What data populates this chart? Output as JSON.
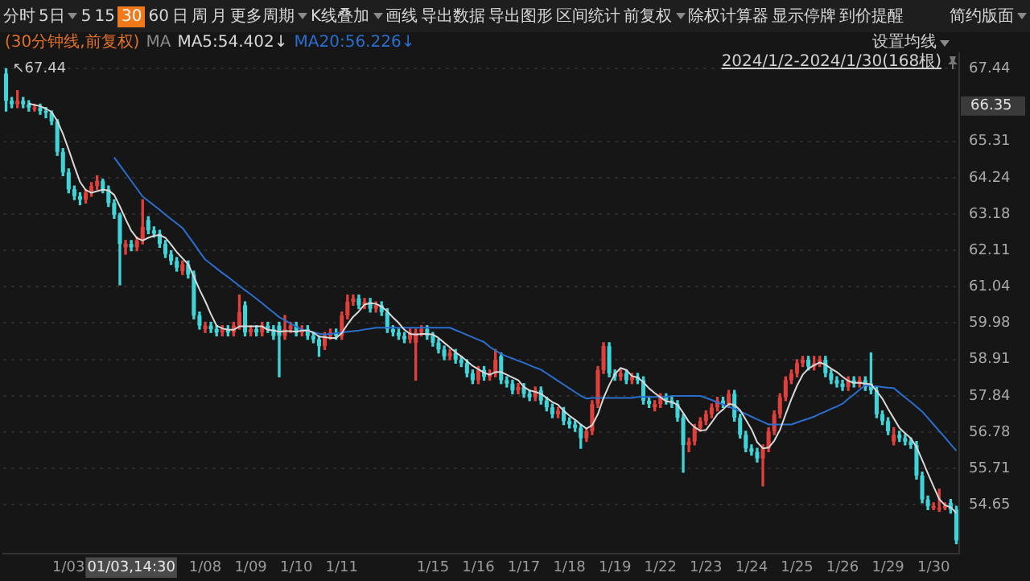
{
  "chart_data": {
    "type": "candlestick",
    "subtitle": "(30分钟线,前复权)",
    "legend_title": "MA",
    "legend": "top left",
    "grid": "y",
    "categories": [
      null,
      null,
      null,
      null,
      null,
      null,
      null,
      null,
      null,
      null,
      null,
      "1/03",
      null,
      null,
      null,
      null,
      null,
      null,
      null,
      null,
      null,
      null,
      "01/03,14:30",
      null,
      null,
      null,
      null,
      null,
      null,
      null,
      null,
      null,
      null,
      null,
      null,
      "1/08",
      null,
      null,
      null,
      null,
      null,
      null,
      null,
      "1/09",
      null,
      null,
      null,
      null,
      null,
      null,
      null,
      "1/10",
      null,
      null,
      null,
      null,
      null,
      null,
      null,
      "1/11",
      null,
      null,
      null,
      null,
      null,
      null,
      null,
      null,
      null,
      null,
      null,
      null,
      null,
      null,
      null,
      "1/15",
      null,
      null,
      null,
      null,
      null,
      null,
      null,
      "1/16",
      null,
      null,
      null,
      null,
      null,
      null,
      null,
      "1/17",
      null,
      null,
      null,
      null,
      null,
      null,
      null,
      "1/18",
      null,
      null,
      null,
      null,
      null,
      null,
      null,
      "1/19",
      null,
      null,
      null,
      null,
      null,
      null,
      null,
      "1/22",
      null,
      null,
      null,
      null,
      null,
      null,
      null,
      "1/23",
      null,
      null,
      null,
      null,
      null,
      null,
      null,
      "1/24",
      null,
      null,
      null,
      null,
      null,
      null,
      null,
      "1/25",
      null,
      null,
      null,
      null,
      null,
      null,
      null,
      "1/26",
      null,
      null,
      null,
      null,
      null,
      null,
      null,
      "1/29",
      null,
      null,
      null,
      null,
      null,
      null,
      null,
      "1/30",
      null,
      null,
      null,
      null
    ],
    "ohlc": [
      [
        67.3,
        67.44,
        66.2,
        66.5
      ],
      [
        66.5,
        66.6,
        66.3,
        66.4
      ],
      [
        66.4,
        66.8,
        66.3,
        66.5
      ],
      [
        66.5,
        66.6,
        66.3,
        66.4
      ],
      [
        66.4,
        66.5,
        66.2,
        66.3
      ],
      [
        66.25,
        66.4,
        66.2,
        66.3
      ],
      [
        66.3,
        66.4,
        66.1,
        66.2
      ],
      [
        66.2,
        66.3,
        66.0,
        66.15
      ],
      [
        66.15,
        66.2,
        65.8,
        65.9
      ],
      [
        65.9,
        65.95,
        64.9,
        65.0
      ],
      [
        65.0,
        65.1,
        64.3,
        64.4
      ],
      [
        64.4,
        64.5,
        63.8,
        63.9
      ],
      [
        63.9,
        64.0,
        63.6,
        63.7
      ],
      [
        63.7,
        63.8,
        63.45,
        63.6
      ],
      [
        63.6,
        63.9,
        63.5,
        63.8
      ],
      [
        63.8,
        64.1,
        63.7,
        64.0
      ],
      [
        64.0,
        64.3,
        63.9,
        64.15
      ],
      [
        64.15,
        64.2,
        63.8,
        63.9
      ],
      [
        63.9,
        64.0,
        63.4,
        63.5
      ],
      [
        63.5,
        63.6,
        63.05,
        63.15
      ],
      [
        63.15,
        63.2,
        61.1,
        62.3
      ],
      [
        62.2,
        62.4,
        62.0,
        62.3
      ],
      [
        62.3,
        62.4,
        62.1,
        62.2
      ],
      [
        62.2,
        62.5,
        62.1,
        62.4
      ],
      [
        62.4,
        63.6,
        62.3,
        62.8
      ],
      [
        63.0,
        63.1,
        62.6,
        62.7
      ],
      [
        62.7,
        62.8,
        62.5,
        62.6
      ],
      [
        62.6,
        62.7,
        62.2,
        62.3
      ],
      [
        62.3,
        62.4,
        61.9,
        62.0
      ],
      [
        62.0,
        62.1,
        61.7,
        61.8
      ],
      [
        61.8,
        61.9,
        61.5,
        61.6
      ],
      [
        61.5,
        61.8,
        61.4,
        61.7
      ],
      [
        61.7,
        61.8,
        61.3,
        61.4
      ],
      [
        61.4,
        61.5,
        60.1,
        60.2
      ],
      [
        60.2,
        60.3,
        59.8,
        59.9
      ],
      [
        59.8,
        60.0,
        59.7,
        59.9
      ],
      [
        59.9,
        60.0,
        59.7,
        59.8
      ],
      [
        59.8,
        59.9,
        59.6,
        59.7
      ],
      [
        59.7,
        59.9,
        59.6,
        59.8
      ],
      [
        59.8,
        59.9,
        59.6,
        59.7
      ],
      [
        59.7,
        60.0,
        59.6,
        59.9
      ],
      [
        59.9,
        60.8,
        59.8,
        60.3
      ],
      [
        60.5,
        60.6,
        59.6,
        59.7
      ],
      [
        59.7,
        59.9,
        59.6,
        59.8
      ],
      [
        59.8,
        59.9,
        59.6,
        59.7
      ],
      [
        59.7,
        60.0,
        59.6,
        59.9
      ],
      [
        59.9,
        60.0,
        59.7,
        59.8
      ],
      [
        59.8,
        59.9,
        59.5,
        59.6
      ],
      [
        59.9,
        60.0,
        58.4,
        59.6
      ],
      [
        59.6,
        60.2,
        59.5,
        59.8
      ],
      [
        59.8,
        60.0,
        59.7,
        59.9
      ],
      [
        59.9,
        60.0,
        59.6,
        59.7
      ],
      [
        59.7,
        59.9,
        59.6,
        59.8
      ],
      [
        59.8,
        59.9,
        59.5,
        59.6
      ],
      [
        59.6,
        59.7,
        59.4,
        59.5
      ],
      [
        59.5,
        59.6,
        59.0,
        59.3
      ],
      [
        59.3,
        59.7,
        59.2,
        59.6
      ],
      [
        59.6,
        59.8,
        59.5,
        59.7
      ],
      [
        59.7,
        59.8,
        59.5,
        59.6
      ],
      [
        59.6,
        60.3,
        59.5,
        60.2
      ],
      [
        60.2,
        60.8,
        60.1,
        60.6
      ],
      [
        60.6,
        60.8,
        60.5,
        60.7
      ],
      [
        60.7,
        60.8,
        60.4,
        60.5
      ],
      [
        60.5,
        60.7,
        60.4,
        60.6
      ],
      [
        60.6,
        60.7,
        60.3,
        60.4
      ],
      [
        60.4,
        60.6,
        60.3,
        60.5
      ],
      [
        60.5,
        60.6,
        60.2,
        60.3
      ],
      [
        60.3,
        60.4,
        59.7,
        59.8
      ],
      [
        59.8,
        59.9,
        59.6,
        59.7
      ],
      [
        59.7,
        59.8,
        59.5,
        59.6
      ],
      [
        59.6,
        59.7,
        59.4,
        59.5
      ],
      [
        59.5,
        59.8,
        59.4,
        59.7
      ],
      [
        59.4,
        59.8,
        58.3,
        59.7
      ],
      [
        59.7,
        59.9,
        59.6,
        59.8
      ],
      [
        59.8,
        59.9,
        59.5,
        59.6
      ],
      [
        59.6,
        59.7,
        59.3,
        59.4
      ],
      [
        59.4,
        59.5,
        59.1,
        59.2
      ],
      [
        59.2,
        59.3,
        58.9,
        59.0
      ],
      [
        59.0,
        59.2,
        58.9,
        59.1
      ],
      [
        59.1,
        59.2,
        58.8,
        58.9
      ],
      [
        58.9,
        59.0,
        58.7,
        58.8
      ],
      [
        58.8,
        58.9,
        58.4,
        58.5
      ],
      [
        58.5,
        58.6,
        58.2,
        58.3
      ],
      [
        58.3,
        58.7,
        58.2,
        58.6
      ],
      [
        58.6,
        58.7,
        58.3,
        58.4
      ],
      [
        58.4,
        58.6,
        58.3,
        58.5
      ],
      [
        58.5,
        59.2,
        58.4,
        58.9
      ],
      [
        59.0,
        59.1,
        58.2,
        58.3
      ],
      [
        58.3,
        58.4,
        58.1,
        58.2
      ],
      [
        58.2,
        58.3,
        57.9,
        58.0
      ],
      [
        58.0,
        58.2,
        57.9,
        58.1
      ],
      [
        58.1,
        58.2,
        57.8,
        57.9
      ],
      [
        57.9,
        58.0,
        57.7,
        57.8
      ],
      [
        57.8,
        58.1,
        57.7,
        58.0
      ],
      [
        58.0,
        58.1,
        57.6,
        57.7
      ],
      [
        57.7,
        57.8,
        57.4,
        57.5
      ],
      [
        57.5,
        57.6,
        57.2,
        57.3
      ],
      [
        57.3,
        57.5,
        57.2,
        57.4
      ],
      [
        57.4,
        57.5,
        57.0,
        57.1
      ],
      [
        57.1,
        57.2,
        56.9,
        57.0
      ],
      [
        57.0,
        57.1,
        56.8,
        56.9
      ],
      [
        56.9,
        57.0,
        56.3,
        56.6
      ],
      [
        56.6,
        56.9,
        56.5,
        56.8
      ],
      [
        56.8,
        57.7,
        56.7,
        57.6
      ],
      [
        57.6,
        58.7,
        57.5,
        58.6
      ],
      [
        58.6,
        59.4,
        58.5,
        59.3
      ],
      [
        59.3,
        59.4,
        58.4,
        58.5
      ],
      [
        58.5,
        58.6,
        58.3,
        58.4
      ],
      [
        58.4,
        58.6,
        58.3,
        58.5
      ],
      [
        58.5,
        58.6,
        58.2,
        58.3
      ],
      [
        58.3,
        58.5,
        58.2,
        58.4
      ],
      [
        58.4,
        58.5,
        58.2,
        58.3
      ],
      [
        58.3,
        58.4,
        57.6,
        57.7
      ],
      [
        57.7,
        57.8,
        57.5,
        57.6
      ],
      [
        57.5,
        57.7,
        57.4,
        57.6
      ],
      [
        57.6,
        57.9,
        57.5,
        57.8
      ],
      [
        57.8,
        57.9,
        57.6,
        57.7
      ],
      [
        57.7,
        57.8,
        57.5,
        57.6
      ],
      [
        57.6,
        57.7,
        57.1,
        57.2
      ],
      [
        57.2,
        57.3,
        55.6,
        56.4
      ],
      [
        56.4,
        56.6,
        56.2,
        56.5
      ],
      [
        56.5,
        57.0,
        56.4,
        56.9
      ],
      [
        56.9,
        57.2,
        56.8,
        57.1
      ],
      [
        57.1,
        57.4,
        57.0,
        57.3
      ],
      [
        57.3,
        57.6,
        57.2,
        57.5
      ],
      [
        57.5,
        57.8,
        57.4,
        57.7
      ],
      [
        57.7,
        57.8,
        57.5,
        57.6
      ],
      [
        57.6,
        58.0,
        57.5,
        57.9
      ],
      [
        57.9,
        58.0,
        57.1,
        57.2
      ],
      [
        57.2,
        57.3,
        56.6,
        56.7
      ],
      [
        56.7,
        56.8,
        56.2,
        56.3
      ],
      [
        56.3,
        56.4,
        56.1,
        56.2
      ],
      [
        56.2,
        56.3,
        55.9,
        56.0
      ],
      [
        56.0,
        56.4,
        55.2,
        56.3
      ],
      [
        56.3,
        56.9,
        56.2,
        56.8
      ],
      [
        56.8,
        57.4,
        56.7,
        57.3
      ],
      [
        57.3,
        57.9,
        57.2,
        57.8
      ],
      [
        57.8,
        58.4,
        57.7,
        58.3
      ],
      [
        58.3,
        58.6,
        58.2,
        58.5
      ],
      [
        58.5,
        58.9,
        58.4,
        58.8
      ],
      [
        58.8,
        59.0,
        58.7,
        58.9
      ],
      [
        58.9,
        59.0,
        58.6,
        58.7
      ],
      [
        58.7,
        59.0,
        58.6,
        58.8
      ],
      [
        58.8,
        59.0,
        58.7,
        58.9
      ],
      [
        58.9,
        59.0,
        58.4,
        58.5
      ],
      [
        58.5,
        58.6,
        58.2,
        58.3
      ],
      [
        58.3,
        58.4,
        58.1,
        58.2
      ],
      [
        58.2,
        58.3,
        58.0,
        58.1
      ],
      [
        58.1,
        58.4,
        58.0,
        58.3
      ],
      [
        58.3,
        58.4,
        58.1,
        58.2
      ],
      [
        58.2,
        58.4,
        58.1,
        58.3
      ],
      [
        58.3,
        58.4,
        58.0,
        58.1
      ],
      [
        58.2,
        59.1,
        57.9,
        58.0
      ],
      [
        58.0,
        58.1,
        57.2,
        57.3
      ],
      [
        57.3,
        57.4,
        57.0,
        57.1
      ],
      [
        57.1,
        57.2,
        56.7,
        56.8
      ],
      [
        56.5,
        56.9,
        56.4,
        56.7
      ],
      [
        56.7,
        56.8,
        56.5,
        56.6
      ],
      [
        56.6,
        56.7,
        56.4,
        56.5
      ],
      [
        56.5,
        56.6,
        56.3,
        56.4
      ],
      [
        56.4,
        56.5,
        55.4,
        55.5
      ],
      [
        55.5,
        55.6,
        54.7,
        54.8
      ],
      [
        54.8,
        54.9,
        54.5,
        54.6
      ],
      [
        54.55,
        54.7,
        54.5,
        54.6
      ],
      [
        54.5,
        55.1,
        54.45,
        54.55
      ],
      [
        54.55,
        54.7,
        54.5,
        54.6
      ],
      [
        54.7,
        54.8,
        54.4,
        54.5
      ],
      [
        54.5,
        54.6,
        53.5,
        53.6
      ]
    ],
    "colors": [
      "#40d4d8",
      "#40d4d8",
      "#e0403c",
      "#40d4d8",
      "#40d4d8",
      "#e0403c",
      "#40d4d8",
      "#40d4d8",
      "#40d4d8",
      "#40d4d8",
      "#40d4d8",
      "#40d4d8",
      "#40d4d8",
      "#40d4d8",
      "#e0403c",
      "#e0403c",
      "#e0403c",
      "#40d4d8",
      "#40d4d8",
      "#40d4d8",
      "#40d4d8",
      "#e0403c",
      "#40d4d8",
      "#e0403c",
      "#e0403c",
      "#40d4d8",
      "#40d4d8",
      "#40d4d8",
      "#40d4d8",
      "#40d4d8",
      "#40d4d8",
      "#e0403c",
      "#40d4d8",
      "#40d4d8",
      "#40d4d8",
      "#e0403c",
      "#40d4d8",
      "#40d4d8",
      "#e0403c",
      "#40d4d8",
      "#e0403c",
      "#e0403c",
      "#40d4d8",
      "#e0403c",
      "#40d4d8",
      "#e0403c",
      "#40d4d8",
      "#40d4d8",
      "#40d4d8",
      "#e0403c",
      "#e0403c",
      "#40d4d8",
      "#e0403c",
      "#40d4d8",
      "#40d4d8",
      "#40d4d8",
      "#e0403c",
      "#e0403c",
      "#40d4d8",
      "#e0403c",
      "#e0403c",
      "#e0403c",
      "#40d4d8",
      "#e0403c",
      "#40d4d8",
      "#e0403c",
      "#40d4d8",
      "#40d4d8",
      "#40d4d8",
      "#40d4d8",
      "#40d4d8",
      "#e0403c",
      "#e0403c",
      "#e0403c",
      "#40d4d8",
      "#40d4d8",
      "#40d4d8",
      "#40d4d8",
      "#e0403c",
      "#40d4d8",
      "#40d4d8",
      "#40d4d8",
      "#40d4d8",
      "#e0403c",
      "#40d4d8",
      "#e0403c",
      "#e0403c",
      "#40d4d8",
      "#40d4d8",
      "#40d4d8",
      "#e0403c",
      "#40d4d8",
      "#40d4d8",
      "#e0403c",
      "#40d4d8",
      "#40d4d8",
      "#40d4d8",
      "#e0403c",
      "#40d4d8",
      "#40d4d8",
      "#40d4d8",
      "#40d4d8",
      "#e0403c",
      "#e0403c",
      "#e0403c",
      "#e0403c",
      "#40d4d8",
      "#40d4d8",
      "#e0403c",
      "#40d4d8",
      "#e0403c",
      "#40d4d8",
      "#40d4d8",
      "#40d4d8",
      "#e0403c",
      "#e0403c",
      "#40d4d8",
      "#40d4d8",
      "#40d4d8",
      "#40d4d8",
      "#e0403c",
      "#e0403c",
      "#e0403c",
      "#e0403c",
      "#e0403c",
      "#e0403c",
      "#40d4d8",
      "#e0403c",
      "#40d4d8",
      "#40d4d8",
      "#40d4d8",
      "#40d4d8",
      "#40d4d8",
      "#e0403c",
      "#e0403c",
      "#e0403c",
      "#e0403c",
      "#e0403c",
      "#e0403c",
      "#e0403c",
      "#e0403c",
      "#40d4d8",
      "#e0403c",
      "#e0403c",
      "#40d4d8",
      "#40d4d8",
      "#40d4d8",
      "#40d4d8",
      "#e0403c",
      "#40d4d8",
      "#e0403c",
      "#40d4d8",
      "#40d4d8",
      "#40d4d8",
      "#40d4d8",
      "#40d4d8",
      "#e0403c",
      "#40d4d8",
      "#40d4d8",
      "#40d4d8",
      "#40d4d8",
      "#40d4d8",
      "#40d4d8",
      "#e0403c",
      "#e0403c",
      "#e0403c",
      "#40d4d8",
      "#40d4d8"
    ],
    "series": [
      {
        "type": "line",
        "name": "MA5:54.402↓",
        "color": "#d8d8d8",
        "values": [
          null,
          null,
          null,
          null,
          66.42,
          66.38,
          66.34,
          66.27,
          66.17,
          65.91,
          65.53,
          65.07,
          64.58,
          64.12,
          63.88,
          63.8,
          63.85,
          63.89,
          63.87,
          63.74,
          63.4,
          63.03,
          62.69,
          62.47,
          62.4,
          62.48,
          62.54,
          62.56,
          62.48,
          62.28,
          62.06,
          61.88,
          61.7,
          61.34,
          60.96,
          60.62,
          60.24,
          59.9,
          59.82,
          59.78,
          59.78,
          59.88,
          59.88,
          59.88,
          59.88,
          59.88,
          59.78,
          59.76,
          59.72,
          59.74,
          59.74,
          59.72,
          59.76,
          59.76,
          59.7,
          59.58,
          59.56,
          59.54,
          59.54,
          59.68,
          59.94,
          60.16,
          60.32,
          60.52,
          60.56,
          60.54,
          60.46,
          60.32,
          60.14,
          59.98,
          59.78,
          59.66,
          59.64,
          59.66,
          59.66,
          59.64,
          59.54,
          59.4,
          59.26,
          59.12,
          59.0,
          58.86,
          58.72,
          58.62,
          58.52,
          58.46,
          58.54,
          58.54,
          58.46,
          58.38,
          58.3,
          58.1,
          58.0,
          57.96,
          57.9,
          57.78,
          57.66,
          57.58,
          57.4,
          57.26,
          57.14,
          57.0,
          56.88,
          56.98,
          57.3,
          57.78,
          58.16,
          58.48,
          58.66,
          58.6,
          58.42,
          58.38,
          58.24,
          58.06,
          57.92,
          57.8,
          57.68,
          57.66,
          57.58,
          57.34,
          57.08,
          56.92,
          56.82,
          56.84,
          57.06,
          57.3,
          57.44,
          57.6,
          57.58,
          57.42,
          57.14,
          56.86,
          56.48,
          56.3,
          56.32,
          56.52,
          56.84,
          57.3,
          57.74,
          58.14,
          58.46,
          58.64,
          58.74,
          58.82,
          58.76,
          58.64,
          58.54,
          58.4,
          58.28,
          58.22,
          58.22,
          58.2,
          58.18,
          57.98,
          57.76,
          57.46,
          57.18,
          56.9,
          56.74,
          56.6,
          56.34,
          55.96,
          55.56,
          55.18,
          54.81,
          54.63,
          54.57,
          54.4
        ]
      },
      {
        "type": "line",
        "name": "MA20:56.226↓",
        "color": "#2a6fd0",
        "values": [
          null,
          null,
          null,
          null,
          null,
          null,
          null,
          null,
          null,
          null,
          null,
          null,
          null,
          null,
          null,
          null,
          null,
          null,
          null,
          64.84,
          64.61,
          64.38,
          64.15,
          63.92,
          63.69,
          63.56,
          63.43,
          63.3,
          63.16,
          63.03,
          62.9,
          62.77,
          62.54,
          62.31,
          62.07,
          61.84,
          61.71,
          61.58,
          61.45,
          61.33,
          61.2,
          61.07,
          60.94,
          60.82,
          60.69,
          60.56,
          60.42,
          60.29,
          60.15,
          60.06,
          59.96,
          59.87,
          59.78,
          59.75,
          59.71,
          59.67,
          59.64,
          59.66,
          59.68,
          59.7,
          59.72,
          59.74,
          59.76,
          59.79,
          59.81,
          59.84,
          59.84,
          59.84,
          59.84,
          59.84,
          59.84,
          59.84,
          59.84,
          59.84,
          59.84,
          59.84,
          59.84,
          59.84,
          59.84,
          59.77,
          59.7,
          59.63,
          59.56,
          59.49,
          59.42,
          59.28,
          59.17,
          59.07,
          59.0,
          58.94,
          58.87,
          58.81,
          58.74,
          58.67,
          58.61,
          58.5,
          58.39,
          58.28,
          58.17,
          58.06,
          57.95,
          57.84,
          57.76,
          57.78,
          57.78,
          57.78,
          57.78,
          57.78,
          57.78,
          57.78,
          57.78,
          57.81,
          57.81,
          57.81,
          57.81,
          57.81,
          57.81,
          57.84,
          57.84,
          57.84,
          57.84,
          57.84,
          57.84,
          57.78,
          57.72,
          57.65,
          57.59,
          57.52,
          57.46,
          57.38,
          57.31,
          57.23,
          57.15,
          57.08,
          57.0,
          57.0,
          57.0,
          57.0,
          57.0,
          57.06,
          57.12,
          57.17,
          57.23,
          57.31,
          57.38,
          57.46,
          57.53,
          57.61,
          57.75,
          57.88,
          58.02,
          58.15,
          58.13,
          58.12,
          58.1,
          58.08,
          58.07,
          57.93,
          57.79,
          57.66,
          57.52,
          57.38,
          57.19,
          57.0,
          56.81,
          56.62,
          56.42,
          56.23
        ]
      }
    ],
    "ylim": [
      53.2,
      67.9
    ],
    "yticks": [
      67.44,
      65.31,
      64.24,
      63.18,
      62.11,
      61.04,
      59.98,
      58.91,
      57.84,
      56.78,
      55.71,
      54.65
    ],
    "annotations": [
      "分时",
      "5日",
      "5",
      "15",
      "30",
      "60",
      "日",
      "周",
      "月",
      "更多周期",
      "K线叠加",
      "画线",
      "导出数据",
      "导出图形",
      "区间统计",
      "前复权",
      "除权计算器",
      "显示停牌",
      "到价提醒",
      "简约版面",
      "设置均线",
      "2024/1/2-2024/1/30(168根)",
      "↖67.44",
      {
        "text": "66.35",
        "y": 66.35
      }
    ]
  }
}
